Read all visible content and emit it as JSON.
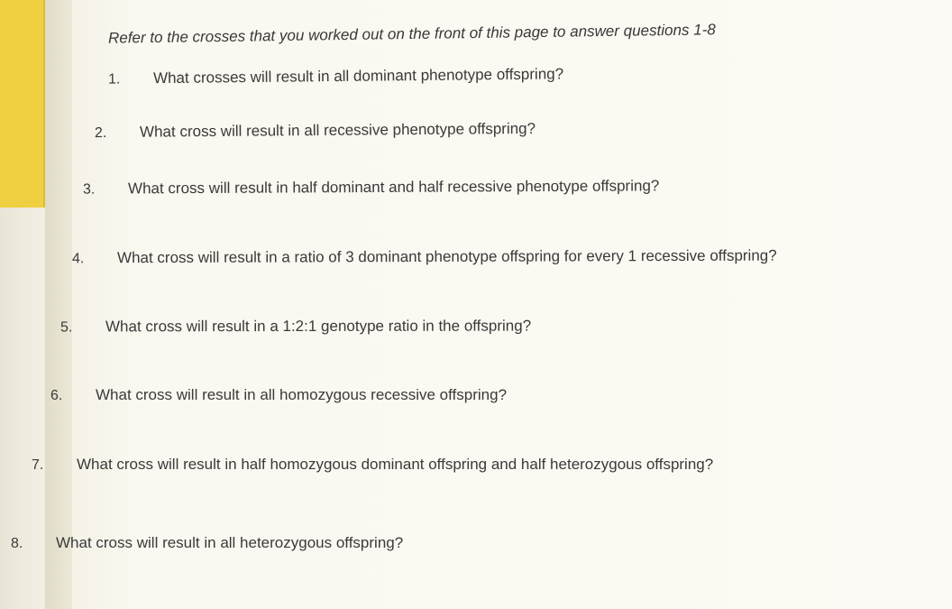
{
  "document": {
    "type": "worksheet",
    "subject": "genetics",
    "background_color": "#faf8f0",
    "text_color": "#3a3a3a",
    "font_family": "Arial",
    "instruction_fontsize": 17,
    "question_fontsize": 17,
    "instruction": "Refer to the crosses that you worked out on the front of this page to answer questions 1-8",
    "questions": [
      {
        "number": "1.",
        "text": "What crosses will result in all dominant phenotype offspring?"
      },
      {
        "number": "2.",
        "text": "What cross will result in all recessive phenotype offspring?"
      },
      {
        "number": "3.",
        "text": "What cross will result in half dominant and half recessive phenotype offspring?"
      },
      {
        "number": "4.",
        "text": "What cross will result in a ratio of 3 dominant phenotype offspring for every 1 recessive offspring?"
      },
      {
        "number": "5.",
        "text": "What cross will result in a 1:2:1 genotype ratio in the offspring?"
      },
      {
        "number": "6.",
        "text": "What cross will result in all homozygous recessive offspring?"
      },
      {
        "number": "7.",
        "text": "What cross will result in half homozygous dominant offspring and half heterozygous offspring?"
      },
      {
        "number": "8.",
        "text": "What cross will result in all heterozygous offspring?"
      }
    ],
    "edge_colors": {
      "yellow_tab": "#f0d040",
      "page_shadow": "#e0dcc8"
    }
  }
}
